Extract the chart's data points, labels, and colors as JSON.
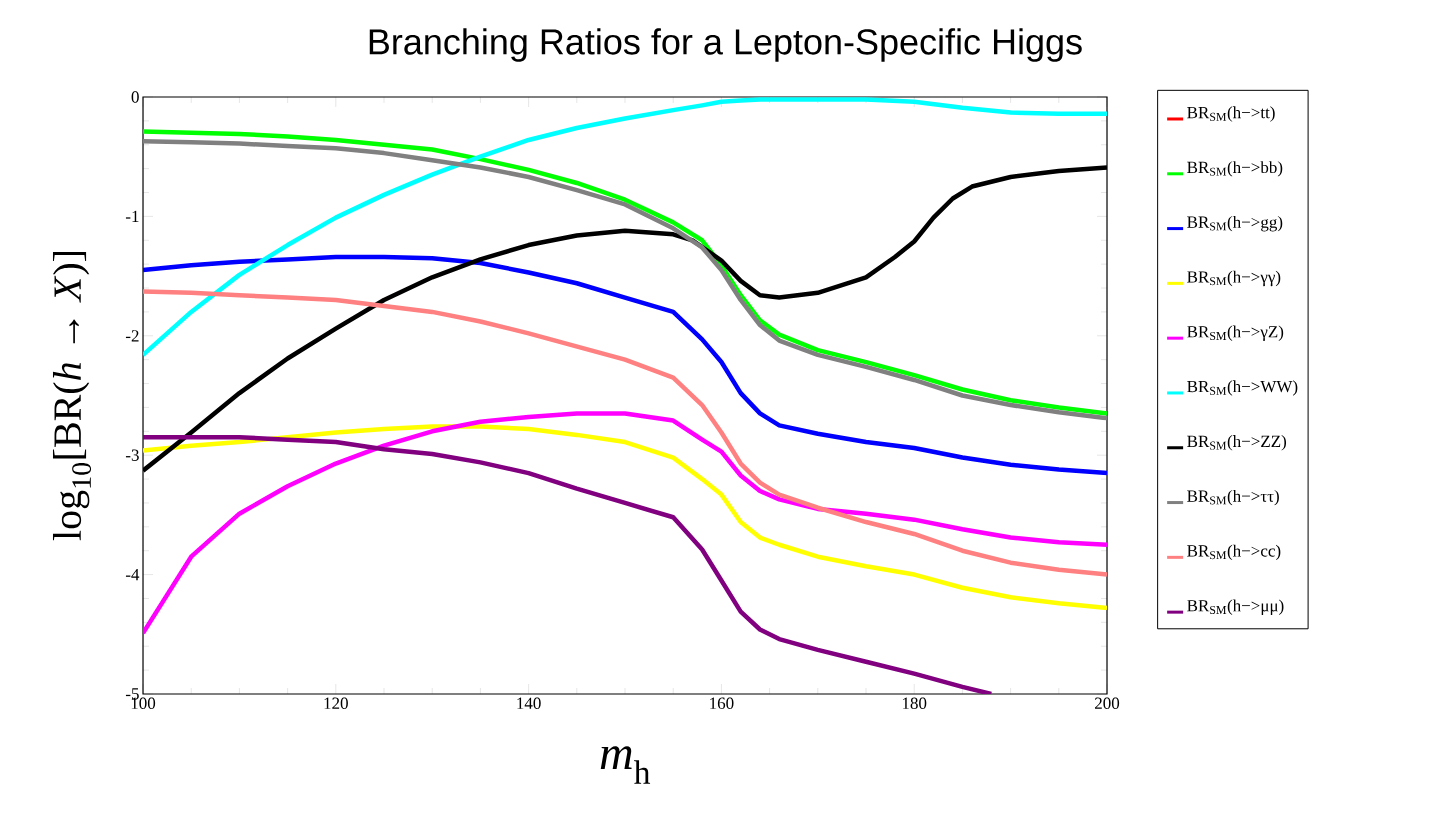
{
  "chart_data": {
    "type": "line",
    "title": "Branching Ratios for a Lepton-Specific Higgs",
    "xlabel": "*m*$_{h}$",
    "ylabel": "log$_{10}$[BR(*h* → *X*)]",
    "x": [
      100,
      105,
      110,
      115,
      120,
      125,
      130,
      135,
      140,
      145,
      150,
      155,
      158,
      160,
      162,
      164,
      166,
      170,
      175,
      180,
      185,
      190,
      195,
      200
    ],
    "xlim": [
      100,
      200
    ],
    "ylim": [
      -5,
      0
    ],
    "xticks": [
      100,
      120,
      140,
      160,
      180,
      200
    ],
    "yticks": [
      0,
      -1,
      -2,
      -3,
      -4,
      -5
    ],
    "legend": "right",
    "series": [
      {
        "name": "BR$_{SM}$(h−>tt)",
        "color": "#ff0000",
        "values": [
          null,
          null,
          null,
          null,
          null,
          null,
          null,
          null,
          null,
          null,
          null,
          null,
          null,
          null,
          null,
          null,
          null,
          null,
          null,
          null,
          null,
          null,
          null,
          null
        ]
      },
      {
        "name": "BR$_{SM}$(h−>bb)",
        "color": "#00ff00",
        "values": [
          -0.29,
          -0.3,
          -0.31,
          -0.33,
          -0.36,
          -0.4,
          -0.44,
          -0.52,
          -0.61,
          -0.72,
          -0.86,
          -1.05,
          -1.2,
          -1.41,
          -1.66,
          -1.87,
          -1.99,
          -2.12,
          -2.22,
          -2.33,
          -2.45,
          -2.54,
          -2.6,
          -2.65
        ]
      },
      {
        "name": "BR$_{SM}$(h−>gg)",
        "color": "#0000ff",
        "values": [
          -1.45,
          -1.41,
          -1.38,
          -1.36,
          -1.34,
          -1.34,
          -1.35,
          -1.39,
          -1.47,
          -1.56,
          -1.68,
          -1.8,
          -2.03,
          -2.22,
          -2.48,
          -2.65,
          -2.75,
          -2.82,
          -2.89,
          -2.94,
          -3.02,
          -3.08,
          -3.12,
          -3.15
        ]
      },
      {
        "name": "BR$_{SM}$(h−>γγ)",
        "color": "#ffff00",
        "values": [
          -2.96,
          -2.92,
          -2.89,
          -2.85,
          -2.81,
          -2.78,
          -2.76,
          -2.76,
          -2.78,
          -2.83,
          -2.89,
          -3.02,
          -3.2,
          -3.33,
          -3.56,
          -3.69,
          -3.75,
          -3.85,
          -3.93,
          -4.0,
          -4.11,
          -4.19,
          -4.24,
          -4.28
        ]
      },
      {
        "name": "BR$_{SM}$(h−>γZ)",
        "color": "#ff00ff",
        "values": [
          -4.49,
          -3.85,
          -3.49,
          -3.26,
          -3.07,
          -2.92,
          -2.8,
          -2.72,
          -2.68,
          -2.65,
          -2.65,
          -2.71,
          -2.87,
          -2.97,
          -3.17,
          -3.3,
          -3.37,
          -3.45,
          -3.49,
          -3.54,
          -3.62,
          -3.69,
          -3.73,
          -3.75
        ]
      },
      {
        "name": "BR$_{SM}$(h−>WW)",
        "color": "#00ffff",
        "values": [
          -2.16,
          -1.8,
          -1.49,
          -1.24,
          -1.01,
          -0.82,
          -0.65,
          -0.5,
          -0.36,
          -0.26,
          -0.18,
          -0.11,
          -0.07,
          -0.04,
          -0.03,
          -0.02,
          -0.02,
          -0.02,
          -0.02,
          -0.04,
          -0.09,
          -0.13,
          -0.14,
          -0.14
        ]
      },
      {
        "name": "BR$_{SM}$(h−>ZZ)",
        "color": "#000000",
        "x": [
          100,
          105,
          110,
          115,
          120,
          125,
          130,
          135,
          140,
          145,
          150,
          155,
          157,
          160,
          162,
          164,
          166,
          170,
          175,
          178,
          180,
          182,
          184,
          186,
          190,
          195,
          200
        ],
        "values": [
          -3.13,
          -2.81,
          -2.48,
          -2.19,
          -1.94,
          -1.7,
          -1.51,
          -1.36,
          -1.24,
          -1.16,
          -1.12,
          -1.15,
          -1.2,
          -1.37,
          -1.54,
          -1.66,
          -1.68,
          -1.64,
          -1.51,
          -1.34,
          -1.21,
          -1.01,
          -0.85,
          -0.75,
          -0.67,
          -0.62,
          -0.59
        ]
      },
      {
        "name": "BR$_{SM}$(h−>ττ)",
        "color": "#808080",
        "values": [
          -0.37,
          -0.38,
          -0.39,
          -0.41,
          -0.43,
          -0.47,
          -0.53,
          -0.59,
          -0.67,
          -0.78,
          -0.9,
          -1.1,
          -1.26,
          -1.45,
          -1.7,
          -1.91,
          -2.04,
          -2.16,
          -2.26,
          -2.37,
          -2.5,
          -2.58,
          -2.64,
          -2.69
        ]
      },
      {
        "name": "BR$_{SM}$(h−>cc)",
        "color": "#ff8080",
        "values": [
          -1.63,
          -1.64,
          -1.66,
          -1.68,
          -1.7,
          -1.75,
          -1.8,
          -1.88,
          -1.98,
          -2.09,
          -2.2,
          -2.35,
          -2.58,
          -2.81,
          -3.07,
          -3.23,
          -3.33,
          -3.44,
          -3.56,
          -3.66,
          -3.8,
          -3.9,
          -3.96,
          -4.0
        ]
      },
      {
        "name": "BR$_{SM}$(h−>μμ)",
        "color": "#800080",
        "x": [
          100,
          105,
          110,
          115,
          120,
          125,
          130,
          135,
          140,
          145,
          150,
          155,
          158,
          160,
          162,
          164,
          166,
          170,
          175,
          180,
          185,
          188
        ],
        "values": [
          -2.85,
          -2.85,
          -2.85,
          -2.87,
          -2.89,
          -2.95,
          -2.99,
          -3.06,
          -3.15,
          -3.28,
          -3.4,
          -3.52,
          -3.79,
          -4.05,
          -4.31,
          -4.46,
          -4.54,
          -4.63,
          -4.73,
          -4.83,
          -4.94,
          -5.0
        ]
      }
    ]
  }
}
